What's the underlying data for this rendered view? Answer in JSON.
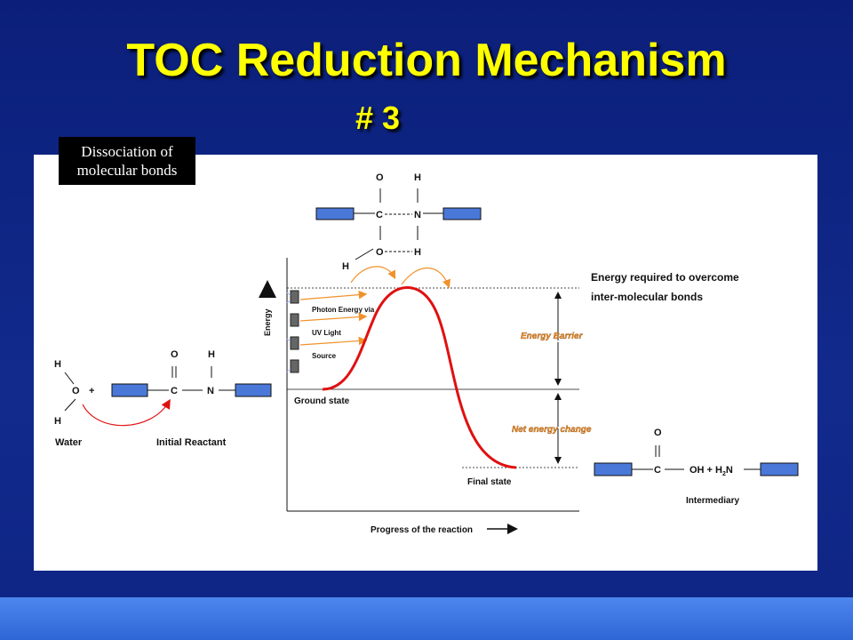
{
  "title": "TOC Reduction Mechanism",
  "subtitle": "# 3",
  "note": {
    "line1": "Dissociation of",
    "line2": "molecular bonds"
  },
  "colors": {
    "background": "#0e2584",
    "title": "#ffff00",
    "curve": "#e01010",
    "block_fill": "#4a78d8",
    "arrow_orange": "#f0922b",
    "barrier_label": "#f0922b"
  },
  "reactant": {
    "h_top": "H",
    "o": "O",
    "plus": "+",
    "h_bottom": "H",
    "c": "C",
    "n": "N",
    "o_top": "O",
    "h_top_n": "H",
    "water_label": "Water",
    "reactant_label": "Initial Reactant"
  },
  "top_molecule": {
    "o1": "O",
    "h1": "H",
    "c": "C",
    "n": "N",
    "o2": "O",
    "h2": "H",
    "h3": "H"
  },
  "photon": {
    "line1": "Photon Energy via",
    "line2": "UV Light",
    "line3": "Source"
  },
  "axes": {
    "y_label": "Energy",
    "x_label": "Progress of the reaction"
  },
  "states": {
    "ground": "Ground state",
    "final": "Final state"
  },
  "annotations": {
    "required_line1": "Energy required to overcome",
    "required_line2": "inter-molecular  bonds",
    "barrier": "Energy Barrier",
    "net": "Net energy change"
  },
  "product": {
    "o": "O",
    "c": "C",
    "oh": "OH + H",
    "sub": "2",
    "n": "N",
    "label": "Intermediary"
  },
  "icons": [
    "up-arrow-icon",
    "right-arrow-icon"
  ]
}
